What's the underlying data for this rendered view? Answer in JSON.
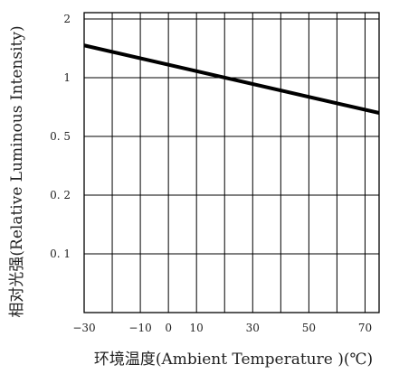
{
  "chart_data": {
    "type": "line",
    "title": "",
    "xlabel": "环境温度(Ambient  Temperature )(℃)",
    "ylabel": "相对光强(Relative  Luminous  Intensity)",
    "x_ticks": [
      -30,
      -10,
      0,
      10,
      30,
      50,
      70
    ],
    "x_tick_labels": [
      "−30",
      "−10",
      "0",
      "10",
      "30",
      "50",
      "70"
    ],
    "y_ticks": [
      0.1,
      0.2,
      0.5,
      1,
      2
    ],
    "y_tick_labels": [
      "0. 1",
      "0. 2",
      "0. 5",
      "1",
      "2"
    ],
    "xlim": [
      -30,
      75
    ],
    "grid": true,
    "legend": "none",
    "line_color": "#000000",
    "series": [
      {
        "x": [
          -30,
          75
        ],
        "y": [
          1.55,
          0.7
        ]
      }
    ]
  }
}
